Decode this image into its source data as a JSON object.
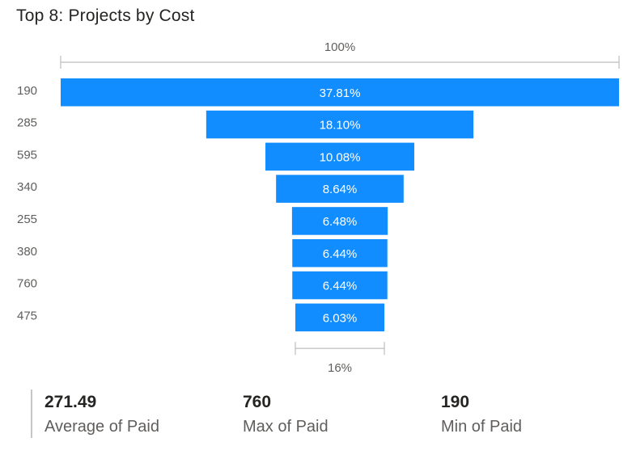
{
  "page": {
    "title": "Top 8: Projects by Cost"
  },
  "chart_data": {
    "type": "funnel",
    "categories": [
      "190",
      "285",
      "595",
      "340",
      "255",
      "380",
      "760",
      "475"
    ],
    "values": [
      37.81,
      18.1,
      10.08,
      8.64,
      6.48,
      6.44,
      6.44,
      6.03
    ],
    "data_labels": [
      "37.81%",
      "18.10%",
      "10.08%",
      "8.64%",
      "6.48%",
      "6.44%",
      "6.44%",
      "6.03%"
    ],
    "top_label": "100%",
    "bottom_label": "16%",
    "bar_color": "#118dff"
  },
  "kpis": [
    {
      "value": "271.49",
      "label": "Average of Paid"
    },
    {
      "value": "760",
      "label": "Max of Paid"
    },
    {
      "value": "190",
      "label": "Min of Paid"
    }
  ]
}
